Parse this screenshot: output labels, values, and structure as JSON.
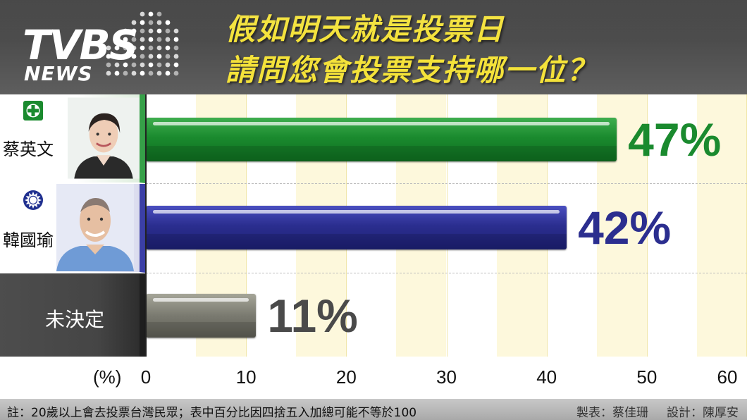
{
  "header": {
    "logo_text": "TVBS",
    "logo_sub": "NEWS",
    "title_line1": "假如明天就是投票日",
    "title_line2": "請問您會投票支持哪一位？"
  },
  "colors": {
    "title_yellow": "#f4e23a",
    "candidate1": "#1a8a2e",
    "candidate2": "#2b2e8f",
    "undecided": "#4a4a4a",
    "band": "#fdf8dc"
  },
  "candidates": [
    {
      "name": "蔡英文",
      "emblem": "dpp-emblem-icon",
      "portrait": "portrait-photo"
    },
    {
      "name": "韓國瑜",
      "emblem": "kmt-emblem-icon",
      "portrait": "portrait-photo"
    },
    {
      "name": "未決定"
    }
  ],
  "chart_data": {
    "type": "bar",
    "orientation": "horizontal",
    "categories": [
      "蔡英文",
      "韓國瑜",
      "未決定"
    ],
    "values": [
      47,
      42,
      11
    ],
    "value_labels": [
      "47%",
      "42%",
      "11%"
    ],
    "colors": [
      "#1a8a2e",
      "#2b2e8f",
      "#7a7a70"
    ],
    "xlabel": "(%)",
    "xlim": [
      0,
      60
    ],
    "xticks": [
      0,
      10,
      20,
      30,
      40,
      50,
      60
    ],
    "grid": true
  },
  "footer": {
    "note": "註：20歲以上會去投票台灣民眾；表中百分比因四捨五入加總可能不等於100",
    "made_by": "製表：蔡佳珊",
    "design": "設計：陳厚安"
  }
}
